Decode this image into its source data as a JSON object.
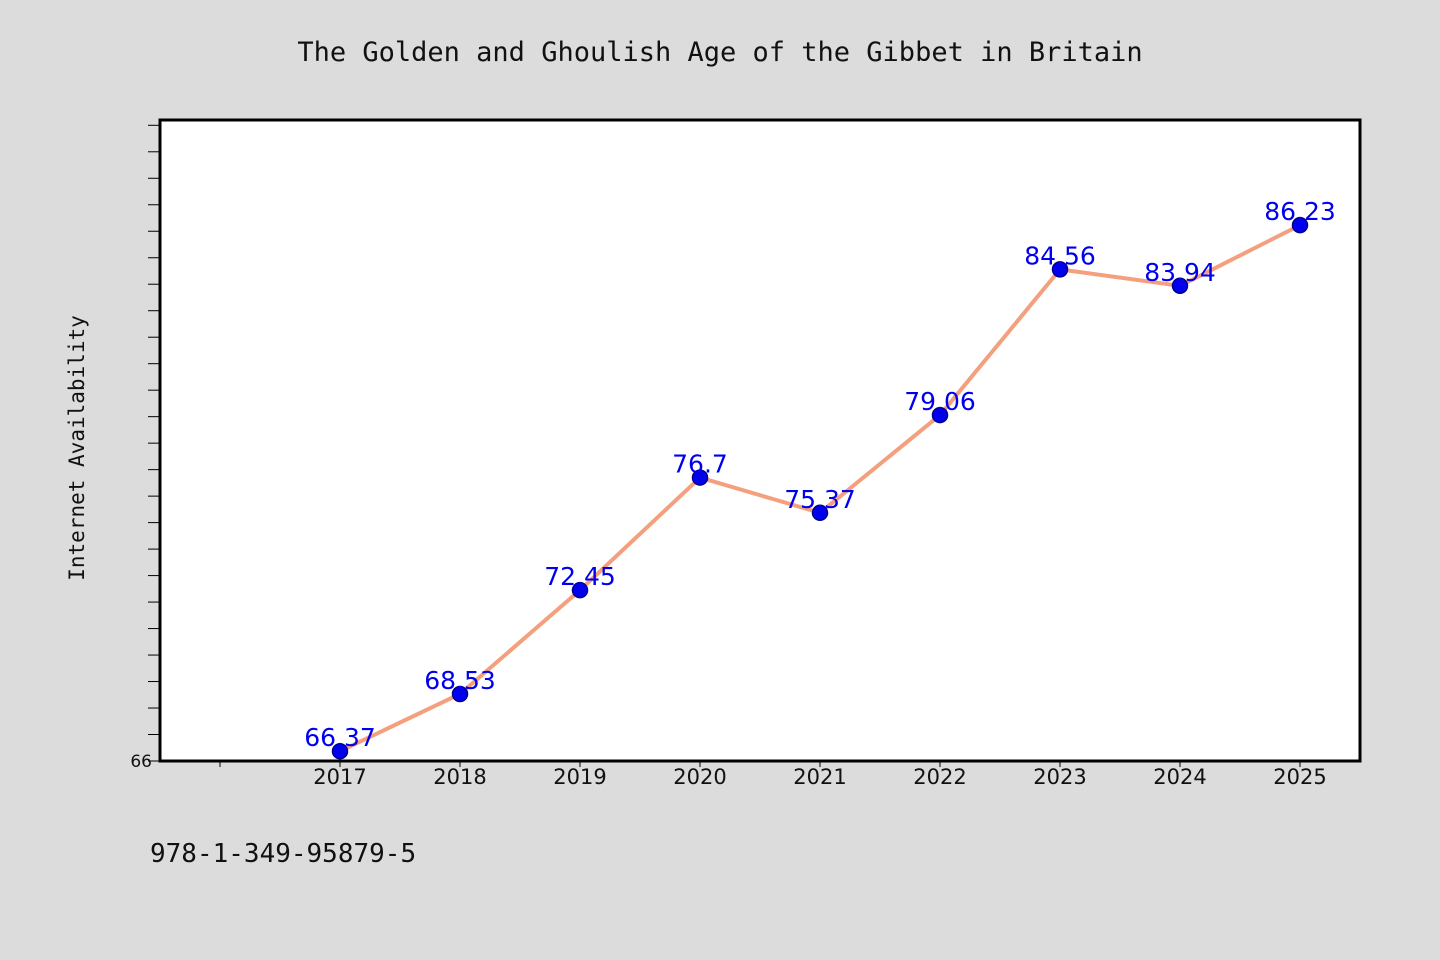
{
  "chart_data": {
    "type": "line",
    "title": "The Golden and Ghoulish Age of the Gibbet in Britain",
    "xlabel": "",
    "ylabel": "Internet Availability",
    "categories": [
      "2017",
      "2018",
      "2019",
      "2020",
      "2021",
      "2022",
      "2023",
      "2024",
      "2025"
    ],
    "series": [
      {
        "values": [
          66.37,
          68.53,
          72.45,
          76.7,
          75.37,
          79.06,
          84.56,
          83.94,
          86.23
        ],
        "data_labels": [
          "66.37",
          "68.53",
          "72.45",
          "76.7",
          "75.37",
          "79.06",
          "84.56",
          "83.94",
          "86.23"
        ]
      }
    ],
    "ylim": [
      66,
      90.2
    ],
    "yticks_labeled": [
      "66"
    ],
    "grid": false,
    "legend": "none",
    "colors": {
      "line": "#f4a07e",
      "marker": "#0000ee",
      "marker_edge": "#00008b",
      "data_label": "#0000ee",
      "plot_background": "#ffffff",
      "figure_background": "#dcdcdc"
    }
  },
  "footnote": "978-1-349-95879-5"
}
